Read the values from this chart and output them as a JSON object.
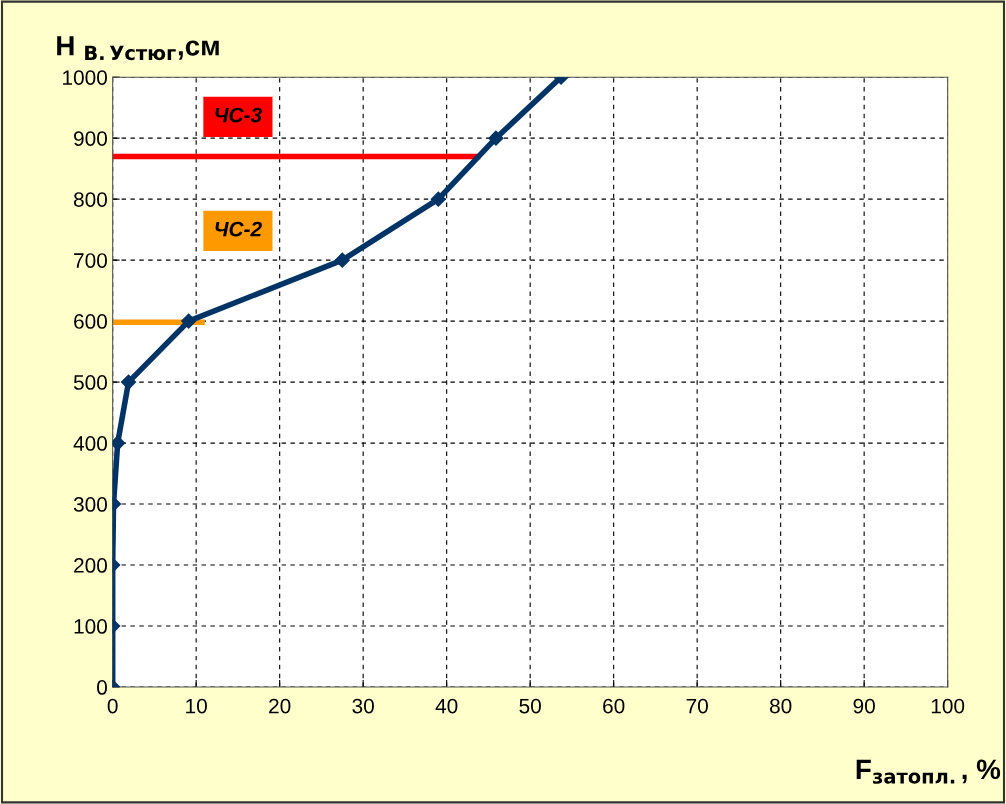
{
  "chart_data": {
    "type": "line",
    "xlabel": "F$_{затопл.}$, %",
    "ylabel": "H $_{В.Устюг}$,см",
    "series": [
      {
        "color": "#003366",
        "marker": "diamond",
        "x": [
          0,
          0,
          0,
          0.1,
          0.6,
          1.9,
          9.1,
          27.5,
          39.0,
          45.9,
          53.7
        ],
        "values": [
          0,
          100,
          200,
          300,
          400,
          500,
          600,
          700,
          800,
          900,
          1000
        ]
      },
      {
        "name": "ЧС-3",
        "color": "#ff0000",
        "x": [
          0,
          43.7
        ],
        "values": [
          870,
          870
        ]
      },
      {
        "name": "ЧС-2",
        "color": "#ff9900",
        "x": [
          0,
          10.7
        ],
        "values": [
          598,
          598
        ]
      }
    ],
    "xlim": [
      0,
      100
    ],
    "xticks": [
      0,
      10,
      20,
      30,
      40,
      50,
      60,
      70,
      80,
      90,
      100
    ],
    "ylim": [
      0,
      1000
    ],
    "yticks": [
      0,
      100,
      200,
      300,
      400,
      500,
      600,
      700,
      800,
      900,
      1000
    ],
    "grid": true
  }
}
